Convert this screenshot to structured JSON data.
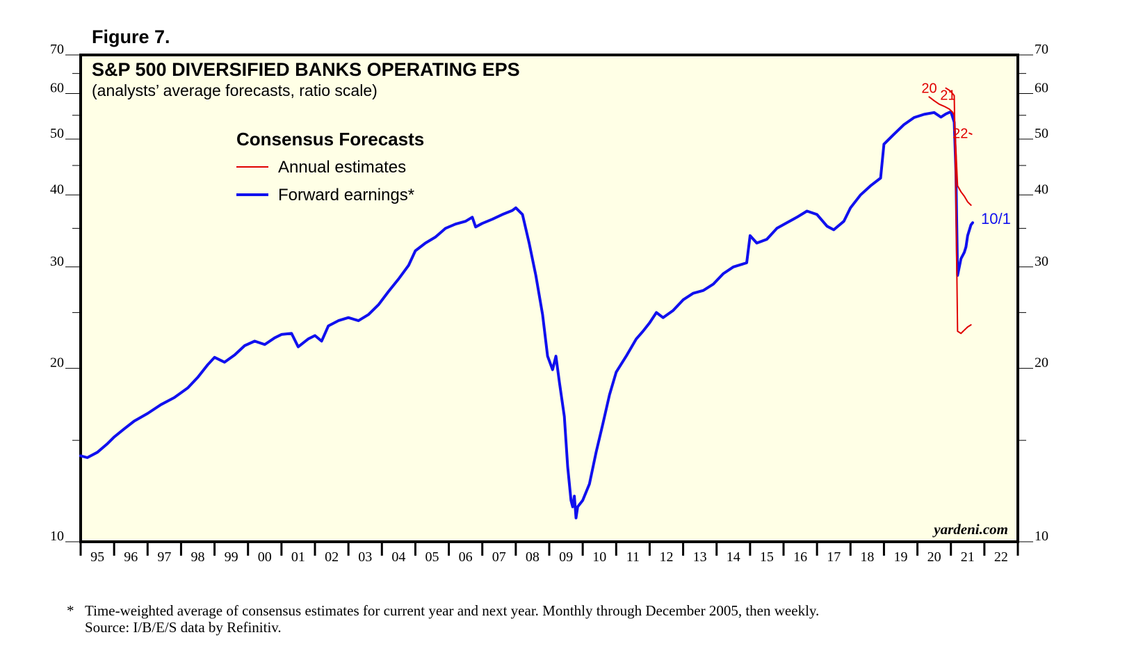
{
  "figure_label": "Figure 7.",
  "colors": {
    "background": "#ffffe6",
    "annual": "#e00000",
    "forward": "#1010ee",
    "axis": "#000000"
  },
  "chart_data": {
    "type": "line",
    "title": "S&P 500 DIVERSIFIED BANKS OPERATING EPS",
    "subtitle": "(analysts’ average forecasts, ratio scale)",
    "yscale": "log",
    "ylim": [
      10,
      70
    ],
    "xlim": [
      1995,
      2023
    ],
    "yticks": [
      10,
      20,
      30,
      40,
      50,
      60,
      70
    ],
    "xticks": [
      "95",
      "96",
      "97",
      "98",
      "99",
      "00",
      "01",
      "02",
      "03",
      "04",
      "05",
      "06",
      "07",
      "08",
      "09",
      "10",
      "11",
      "12",
      "13",
      "14",
      "15",
      "16",
      "17",
      "18",
      "19",
      "20",
      "21",
      "22"
    ],
    "legend": {
      "title": "Consensus Forecasts",
      "entries": [
        {
          "label": "Annual estimates",
          "series": "annual"
        },
        {
          "label": "Forward earnings*",
          "series": "forward"
        }
      ]
    },
    "source_label": "yardeni.com",
    "series": [
      {
        "name": "Forward earnings*",
        "key": "forward",
        "points": [
          [
            1995.0,
            14.1
          ],
          [
            1995.2,
            14.0
          ],
          [
            1995.5,
            14.3
          ],
          [
            1995.8,
            14.8
          ],
          [
            1996.0,
            15.2
          ],
          [
            1996.3,
            15.7
          ],
          [
            1996.6,
            16.2
          ],
          [
            1997.0,
            16.7
          ],
          [
            1997.4,
            17.3
          ],
          [
            1997.8,
            17.8
          ],
          [
            1998.2,
            18.5
          ],
          [
            1998.5,
            19.3
          ],
          [
            1998.8,
            20.3
          ],
          [
            1999.0,
            20.9
          ],
          [
            1999.3,
            20.5
          ],
          [
            1999.6,
            21.1
          ],
          [
            1999.9,
            21.9
          ],
          [
            2000.2,
            22.3
          ],
          [
            2000.5,
            22.0
          ],
          [
            2000.8,
            22.6
          ],
          [
            2001.0,
            22.9
          ],
          [
            2001.3,
            23.0
          ],
          [
            2001.5,
            21.8
          ],
          [
            2001.8,
            22.5
          ],
          [
            2002.0,
            22.8
          ],
          [
            2002.2,
            22.3
          ],
          [
            2002.4,
            23.7
          ],
          [
            2002.7,
            24.2
          ],
          [
            2003.0,
            24.5
          ],
          [
            2003.3,
            24.2
          ],
          [
            2003.6,
            24.8
          ],
          [
            2003.9,
            25.8
          ],
          [
            2004.2,
            27.2
          ],
          [
            2004.5,
            28.6
          ],
          [
            2004.8,
            30.2
          ],
          [
            2005.0,
            32.0
          ],
          [
            2005.3,
            33.0
          ],
          [
            2005.6,
            33.8
          ],
          [
            2005.9,
            35.0
          ],
          [
            2006.2,
            35.6
          ],
          [
            2006.5,
            36.0
          ],
          [
            2006.7,
            36.6
          ],
          [
            2006.8,
            35.2
          ],
          [
            2007.0,
            35.7
          ],
          [
            2007.3,
            36.3
          ],
          [
            2007.6,
            37.0
          ],
          [
            2007.9,
            37.6
          ],
          [
            2008.0,
            38.0
          ],
          [
            2008.2,
            37.0
          ],
          [
            2008.4,
            33.0
          ],
          [
            2008.6,
            29.0
          ],
          [
            2008.8,
            24.8
          ],
          [
            2008.95,
            21.0
          ],
          [
            2009.1,
            19.9
          ],
          [
            2009.2,
            21.0
          ],
          [
            2009.3,
            19.0
          ],
          [
            2009.45,
            16.5
          ],
          [
            2009.55,
            13.5
          ],
          [
            2009.65,
            11.8
          ],
          [
            2009.7,
            11.5
          ],
          [
            2009.75,
            12.0
          ],
          [
            2009.8,
            11.0
          ],
          [
            2009.85,
            11.5
          ],
          [
            2010.0,
            11.8
          ],
          [
            2010.2,
            12.6
          ],
          [
            2010.4,
            14.3
          ],
          [
            2010.6,
            16.0
          ],
          [
            2010.8,
            18.0
          ],
          [
            2011.0,
            19.7
          ],
          [
            2011.3,
            21.0
          ],
          [
            2011.6,
            22.5
          ],
          [
            2011.8,
            23.2
          ],
          [
            2012.0,
            24.0
          ],
          [
            2012.2,
            25.0
          ],
          [
            2012.4,
            24.5
          ],
          [
            2012.7,
            25.2
          ],
          [
            2013.0,
            26.3
          ],
          [
            2013.3,
            27.0
          ],
          [
            2013.6,
            27.3
          ],
          [
            2013.9,
            28.0
          ],
          [
            2014.2,
            29.2
          ],
          [
            2014.5,
            30.0
          ],
          [
            2014.9,
            30.5
          ],
          [
            2015.0,
            34.0
          ],
          [
            2015.2,
            33.0
          ],
          [
            2015.5,
            33.5
          ],
          [
            2015.8,
            35.0
          ],
          [
            2016.1,
            35.8
          ],
          [
            2016.4,
            36.6
          ],
          [
            2016.7,
            37.5
          ],
          [
            2017.0,
            37.0
          ],
          [
            2017.3,
            35.3
          ],
          [
            2017.5,
            34.8
          ],
          [
            2017.8,
            36.0
          ],
          [
            2018.0,
            38.0
          ],
          [
            2018.3,
            40.0
          ],
          [
            2018.6,
            41.5
          ],
          [
            2018.9,
            42.8
          ],
          [
            2019.0,
            49.0
          ],
          [
            2019.3,
            51.0
          ],
          [
            2019.6,
            53.0
          ],
          [
            2019.9,
            54.5
          ],
          [
            2020.2,
            55.2
          ],
          [
            2020.5,
            55.6
          ],
          [
            2020.7,
            54.6
          ],
          [
            2020.85,
            55.3
          ],
          [
            2021.0,
            55.8
          ],
          [
            2021.1,
            53.5
          ],
          [
            2021.15,
            44.0
          ],
          [
            2021.2,
            29.0
          ],
          [
            2021.3,
            31.0
          ],
          [
            2021.4,
            31.8
          ],
          [
            2021.45,
            32.5
          ],
          [
            2021.5,
            34.0
          ],
          [
            2021.6,
            35.5
          ],
          [
            2021.65,
            35.8
          ]
        ]
      },
      {
        "name": "Annual estimates 2020",
        "key": "annual",
        "label": "20",
        "points": [
          [
            2020.85,
            61.3
          ],
          [
            2020.95,
            60.8
          ],
          [
            2021.05,
            60.0
          ],
          [
            2021.1,
            59.5
          ],
          [
            2021.15,
            40.0
          ],
          [
            2021.2,
            23.2
          ],
          [
            2021.3,
            23.0
          ],
          [
            2021.4,
            23.3
          ],
          [
            2021.5,
            23.6
          ],
          [
            2021.6,
            23.8
          ]
        ]
      },
      {
        "name": "Annual estimates 2021",
        "key": "annual",
        "label": "21",
        "points": [
          [
            2020.35,
            59.2
          ],
          [
            2020.5,
            58.3
          ],
          [
            2020.65,
            57.5
          ],
          [
            2020.8,
            57.0
          ],
          [
            2020.95,
            56.4
          ],
          [
            2021.05,
            55.7
          ],
          [
            2021.1,
            55.0
          ],
          [
            2021.15,
            48.0
          ],
          [
            2021.2,
            41.5
          ],
          [
            2021.3,
            40.5
          ],
          [
            2021.4,
            39.8
          ],
          [
            2021.5,
            38.9
          ],
          [
            2021.6,
            38.4
          ]
        ]
      },
      {
        "name": "Annual estimates 2022",
        "key": "annual",
        "label": "22",
        "points": [
          [
            2021.55,
            51.2
          ],
          [
            2021.62,
            51.0
          ]
        ]
      }
    ],
    "annotations": [
      {
        "text": "20",
        "x": 2020.12,
        "y": 61.3,
        "color": "annual"
      },
      {
        "text": "21",
        "x": 2020.68,
        "y": 59.7,
        "color": "annual"
      },
      {
        "text": "22",
        "x": 2021.05,
        "y": 51.2,
        "color": "annual"
      },
      {
        "text": "10/1",
        "x": 2021.9,
        "y": 36.3,
        "color": "forward"
      }
    ]
  },
  "footnote": {
    "mark": "*",
    "line1": "Time-weighted average of consensus estimates for current year and next year. Monthly through December 2005, then weekly.",
    "line2": "Source: I/B/E/S data by Refinitiv."
  }
}
